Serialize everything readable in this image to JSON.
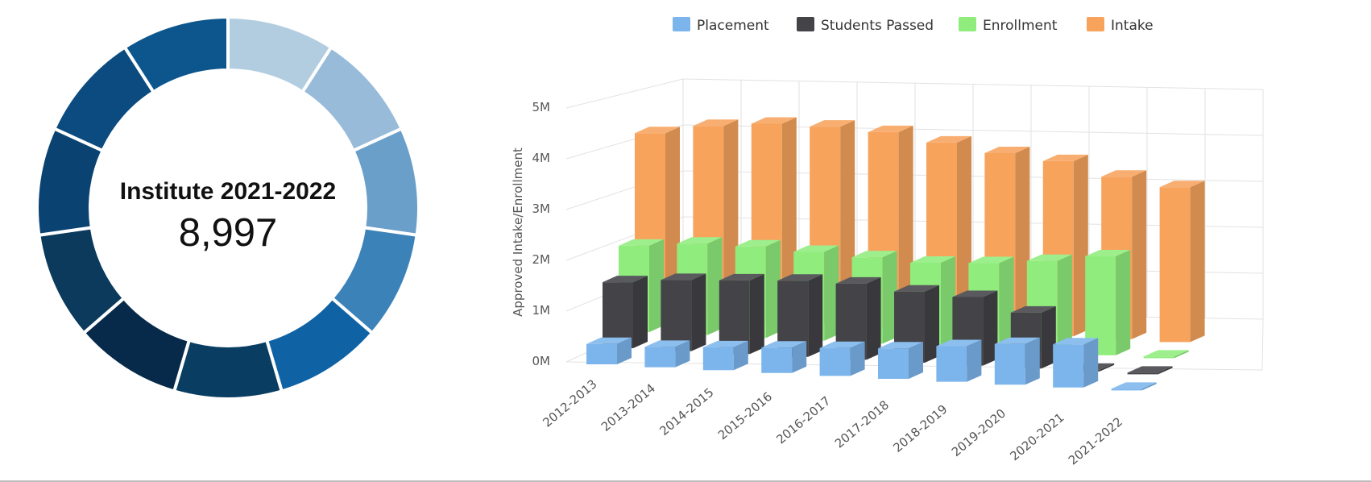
{
  "colors": {
    "placement": "#7cb5ec",
    "students_passed": "#434348",
    "enrollment": "#90ed7d",
    "intake": "#f7a35c"
  },
  "donut": {
    "title": "Institute 2021-2022",
    "value": "8,997",
    "segment_colors": [
      "#b3cde0",
      "#97bbd8",
      "#6a9fca",
      "#3b82b8",
      "#0f63a5",
      "#0a3d62",
      "#07294a",
      "#0b3a5c",
      "#0a4372",
      "#0b4b80",
      "#0d568d"
    ]
  },
  "chart_data": {
    "type": "bar",
    "categories": [
      "2012-2013",
      "2013-2014",
      "2014-2015",
      "2015-2016",
      "2016-2017",
      "2017-2018",
      "2018-2019",
      "2019-2020",
      "2020-2021",
      "2021-2022"
    ],
    "series": [
      {
        "name": "Placement",
        "values": [
          0.4,
          0.4,
          0.45,
          0.5,
          0.55,
          0.6,
          0.7,
          0.8,
          0.85,
          0.02
        ],
        "color": "#7cb5ec"
      },
      {
        "name": "Students Passed",
        "values": [
          1.3,
          1.4,
          1.45,
          1.5,
          1.5,
          1.4,
          1.35,
          1.1,
          0.03,
          0.02
        ],
        "color": "#434348"
      },
      {
        "name": "Enrollment",
        "values": [
          1.7,
          1.8,
          1.8,
          1.75,
          1.7,
          1.65,
          1.7,
          1.8,
          1.95,
          0.02
        ],
        "color": "#90ed7d"
      },
      {
        "name": "Intake",
        "values": [
          3.6,
          3.8,
          3.9,
          3.9,
          3.85,
          3.7,
          3.55,
          3.45,
          3.2,
          3.05
        ],
        "color": "#f7a35c"
      }
    ],
    "ylabel": "Approved Intake/Enrollment",
    "xlabel": "",
    "ylim": [
      0,
      5
    ],
    "yticks": [
      "0M",
      "1M",
      "2M",
      "3M",
      "4M",
      "5M"
    ],
    "grid": true,
    "legend_position": "top",
    "style": "3d-column"
  }
}
